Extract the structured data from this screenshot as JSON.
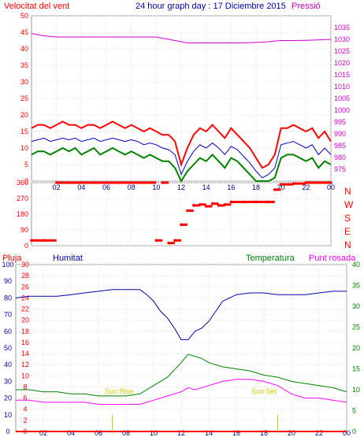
{
  "header": {
    "wind_title": "Velocitat del vent",
    "graph_title": "24 hour graph day : 17 Diciembre 2015",
    "pressure_title": "Pressió"
  },
  "hum_labels": {
    "rain": "Pluja",
    "humidity": "Humitat",
    "temperature": "Temperatura",
    "dewpoint": "Punt rosada"
  },
  "annotations": {
    "sunrise": "Sun Rise",
    "sunset": "Sun Set"
  },
  "colors": {
    "wind_max": "#ff0000",
    "wind_avg": "#0000cc",
    "wind_min": "#008000",
    "pressure": "#cc00cc",
    "direction": "#ff0000",
    "humidity": "#0000aa",
    "temperature": "#008000",
    "dewpoint": "#ff00ff",
    "rain": "#ff0000",
    "left_axis": "#ff0000",
    "hour_axis": "#000080",
    "sun_marker": "#cccc00"
  },
  "chart_data": [
    {
      "type": "line",
      "panel": "wind",
      "title": "24 hour graph day : 17 Diciembre 2015",
      "x_ticks": [
        "02",
        "04",
        "06",
        "08",
        "10",
        "12",
        "14",
        "16",
        "18",
        "20",
        "22",
        "00"
      ],
      "xlim": [
        0,
        24
      ],
      "ylabel": "Velocitat del vent",
      "ylim": [
        0,
        50
      ],
      "yticks": [
        0,
        5,
        10,
        15,
        20,
        25,
        30,
        35,
        40,
        45,
        50
      ],
      "y2label": "Pressió",
      "y2lim": [
        970,
        1040
      ],
      "y2ticks": [
        975,
        980,
        985,
        990,
        995,
        1000,
        1005,
        1010,
        1015,
        1020,
        1025,
        1030,
        1035
      ],
      "grid": true,
      "series": [
        {
          "x": [
            0,
            0.5,
            1,
            1.5,
            2,
            2.5,
            3,
            3.5,
            4,
            4.5,
            5,
            5.5,
            6,
            6.5,
            7,
            7.5,
            8,
            8.5,
            9,
            9.5,
            10,
            10.5,
            11,
            11.5,
            12,
            12.5,
            13,
            13.5,
            14,
            14.5,
            15,
            15.5,
            16,
            16.5,
            17,
            17.5,
            18,
            18.5,
            19,
            19.5,
            20,
            20.5,
            21,
            21.5,
            22,
            22.5,
            23,
            23.5,
            24
          ],
          "values": [
            16,
            17,
            17,
            16,
            17,
            18,
            17,
            17,
            16,
            17,
            17,
            16,
            17,
            18,
            17,
            16,
            17,
            16,
            15,
            16,
            15,
            14,
            14,
            12,
            5,
            10,
            14,
            16,
            15,
            17,
            15,
            13,
            16,
            14,
            12,
            10,
            7,
            4,
            5,
            8,
            16,
            16,
            17,
            16,
            15,
            16,
            13,
            15,
            12
          ]
        },
        {
          "x": [
            0,
            0.5,
            1,
            1.5,
            2,
            2.5,
            3,
            3.5,
            4,
            4.5,
            5,
            5.5,
            6,
            6.5,
            7,
            7.5,
            8,
            8.5,
            9,
            9.5,
            10,
            10.5,
            11,
            11.5,
            12,
            12.5,
            13,
            13.5,
            14,
            14.5,
            15,
            15.5,
            16,
            16.5,
            17,
            17.5,
            18,
            18.5,
            19,
            19.5,
            20,
            20.5,
            21,
            21.5,
            22,
            22.5,
            23,
            23.5,
            24
          ],
          "values": [
            12,
            12.5,
            13,
            12,
            12.5,
            13,
            12.5,
            13,
            12,
            12.5,
            13,
            12,
            12.5,
            13,
            12.5,
            12,
            12.5,
            12,
            11,
            11.5,
            11,
            10,
            9.5,
            8,
            2,
            6,
            9,
            11,
            10,
            11.5,
            10,
            8,
            10.5,
            9.5,
            7.5,
            5.5,
            3,
            1,
            2,
            4,
            11,
            11.5,
            12,
            11,
            10,
            11,
            8,
            10,
            8
          ]
        },
        {
          "x": [
            0,
            0.5,
            1,
            1.5,
            2,
            2.5,
            3,
            3.5,
            4,
            4.5,
            5,
            5.5,
            6,
            6.5,
            7,
            7.5,
            8,
            8.5,
            9,
            9.5,
            10,
            10.5,
            11,
            11.5,
            12,
            12.5,
            13,
            13.5,
            14,
            14.5,
            15,
            15.5,
            16,
            16.5,
            17,
            17.5,
            18,
            18.5,
            19,
            19.5,
            20,
            20.5,
            21,
            21.5,
            22,
            22.5,
            23,
            23.5,
            24
          ],
          "values": [
            8,
            9,
            9,
            8,
            9,
            10,
            9,
            10,
            8,
            9,
            10,
            8,
            9,
            10,
            9,
            8,
            9,
            8,
            7,
            8,
            7,
            6,
            6,
            4,
            0,
            3,
            5,
            7,
            6,
            8,
            6,
            4,
            7,
            6,
            4,
            2,
            0,
            0,
            0,
            1,
            7,
            8,
            8,
            7,
            6,
            7,
            4,
            6,
            5
          ]
        },
        {
          "axis": "right",
          "x": [
            0,
            0.5,
            1,
            2,
            3,
            4,
            5,
            6,
            7,
            8,
            9,
            9.5,
            10,
            10.5,
            11,
            11.5,
            12,
            12.5,
            13,
            14,
            15,
            16,
            17,
            18,
            19,
            19.5,
            20,
            21,
            22,
            23,
            24
          ],
          "values": [
            1032.5,
            1032,
            1031.5,
            1031,
            1031,
            1031,
            1031,
            1031,
            1031,
            1031,
            1031,
            1031,
            1031,
            1030.5,
            1030,
            1029.5,
            1029,
            1028.5,
            1028.5,
            1028.5,
            1028.5,
            1028.5,
            1028.5,
            1028.7,
            1029,
            1029.3,
            1029.5,
            1029.5,
            1029.6,
            1029.8,
            1030
          ]
        }
      ]
    },
    {
      "type": "scatter",
      "panel": "direction",
      "ylabel": "N W S E N",
      "direction_labels": [
        "N",
        "W",
        "S",
        "E",
        "N"
      ],
      "ylim": [
        0,
        360
      ],
      "yticks": [
        0,
        90,
        180,
        270,
        360
      ],
      "grid": true,
      "series": [
        {
          "x": [
            0,
            1,
            2,
            3,
            4,
            5,
            6,
            7,
            8,
            9,
            10,
            10.5,
            11,
            11.5,
            12,
            12.5,
            13,
            13.5,
            14,
            14.5,
            15,
            15.5,
            16,
            17,
            18,
            19,
            19.5,
            20,
            21,
            22,
            23,
            24
          ],
          "values": [
            30,
            30,
            360,
            360,
            360,
            360,
            360,
            360,
            360,
            360,
            30,
            360,
            15,
            30,
            120,
            200,
            230,
            235,
            225,
            240,
            230,
            235,
            250,
            250,
            250,
            250,
            320,
            350,
            355,
            360,
            360,
            360
          ]
        }
      ]
    },
    {
      "type": "line",
      "panel": "humidity_temperature",
      "ylabel": "Pluja",
      "rain_ylim": [
        0,
        30
      ],
      "rain_ticks": [
        0,
        2,
        4,
        6,
        8,
        10,
        12,
        14,
        16,
        18,
        20,
        22,
        24,
        26,
        28,
        30
      ],
      "humidity_ylim": [
        0,
        100
      ],
      "humidity_ticks": [
        0,
        10,
        20,
        30,
        40,
        50,
        60,
        70,
        80,
        90,
        100
      ],
      "temperature_ylim": [
        0,
        40
      ],
      "temperature_ticks": [
        0,
        5,
        10,
        15,
        20,
        25,
        30,
        35,
        40
      ],
      "grid": true,
      "series": [
        {
          "name": "Humitat",
          "axis": "humidity",
          "x": [
            0,
            1,
            2,
            3,
            4,
            5,
            6,
            7,
            8,
            9,
            9.5,
            10,
            10.5,
            11,
            11.5,
            12,
            12.5,
            13,
            13.5,
            14,
            14.5,
            15,
            15.5,
            16,
            17,
            18,
            19,
            20,
            21,
            22,
            23,
            24
          ],
          "values": [
            80,
            81,
            81,
            81,
            82,
            83,
            84,
            85,
            85,
            85,
            82,
            78,
            72,
            68,
            62,
            55,
            55,
            60,
            62,
            66,
            72,
            78,
            80,
            82,
            83,
            83,
            82,
            82,
            82,
            83,
            84,
            84
          ]
        },
        {
          "name": "Temperatura",
          "axis": "temperature",
          "x": [
            0,
            1,
            2,
            3,
            4,
            5,
            6,
            7,
            8,
            9,
            10,
            11,
            12,
            12.5,
            13,
            13.5,
            14,
            15,
            16,
            17,
            18,
            19,
            20,
            21,
            22,
            23,
            24
          ],
          "values": [
            10,
            10,
            9.5,
            9.5,
            9,
            9,
            8.5,
            8.5,
            8.5,
            9,
            11,
            13,
            16.5,
            18.5,
            18,
            17.5,
            16.5,
            15.5,
            15,
            14.5,
            13.5,
            13,
            12,
            11.5,
            11,
            10.5,
            9.5
          ]
        },
        {
          "name": "Punt rosada",
          "axis": "temperature",
          "x": [
            0,
            1,
            2,
            3,
            4,
            5,
            6,
            7,
            8,
            9,
            10,
            11,
            12,
            12.5,
            13,
            14,
            15,
            16,
            17,
            18,
            19,
            20,
            21,
            22,
            23,
            24
          ],
          "values": [
            7.5,
            7.5,
            7,
            7,
            7,
            7,
            6.5,
            6.5,
            6.5,
            6.5,
            7.5,
            8.5,
            9.5,
            10.5,
            10,
            11,
            12,
            12.5,
            12.5,
            12,
            11,
            9,
            8,
            8,
            7.5,
            7
          ]
        },
        {
          "name": "Pluja",
          "axis": "rain",
          "x": [
            0,
            24
          ],
          "values": [
            0,
            0
          ]
        }
      ],
      "sunrise_x": 7,
      "sunset_x": 19
    }
  ]
}
